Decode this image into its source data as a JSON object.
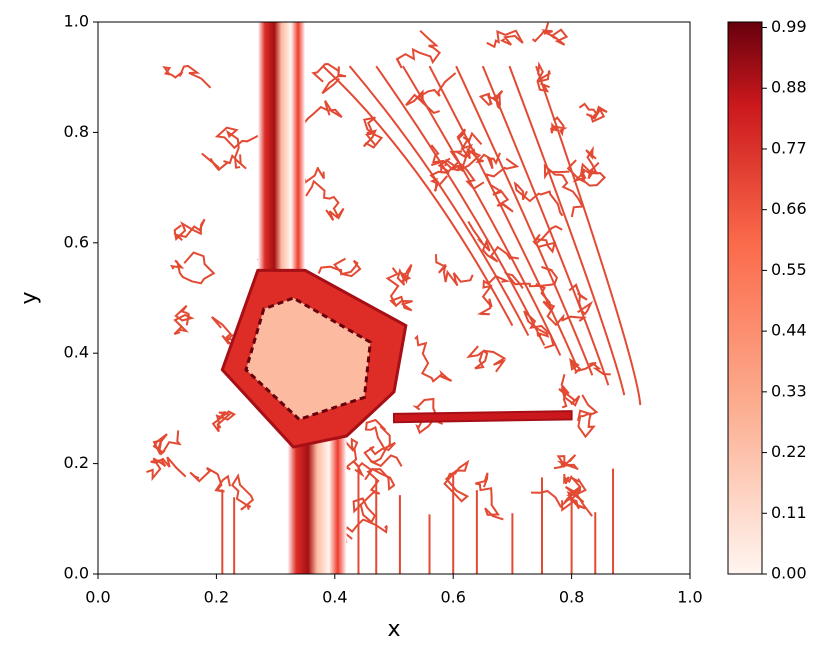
{
  "chart_data": {
    "type": "contour",
    "x_label": "x",
    "y_label": "y",
    "xlim": [
      0,
      1
    ],
    "ylim": [
      0,
      1
    ],
    "xticks": [
      {
        "value": 0,
        "label": "0.0"
      },
      0.2,
      0.4,
      0.6,
      0.8,
      {
        "value": 1,
        "label": "1.0"
      }
    ],
    "yticks": [
      {
        "value": 0,
        "label": "0.0"
      },
      0.2,
      0.4,
      0.6,
      0.8,
      {
        "value": 1,
        "label": "1.0"
      }
    ],
    "colormap": "Reds",
    "clim": [
      0,
      1
    ],
    "colorbar_ticks": [
      {
        "value": 0,
        "label": "0.00"
      },
      0.11,
      0.22,
      0.33,
      0.44,
      0.55,
      0.66,
      0.77,
      0.88,
      0.99
    ]
  }
}
